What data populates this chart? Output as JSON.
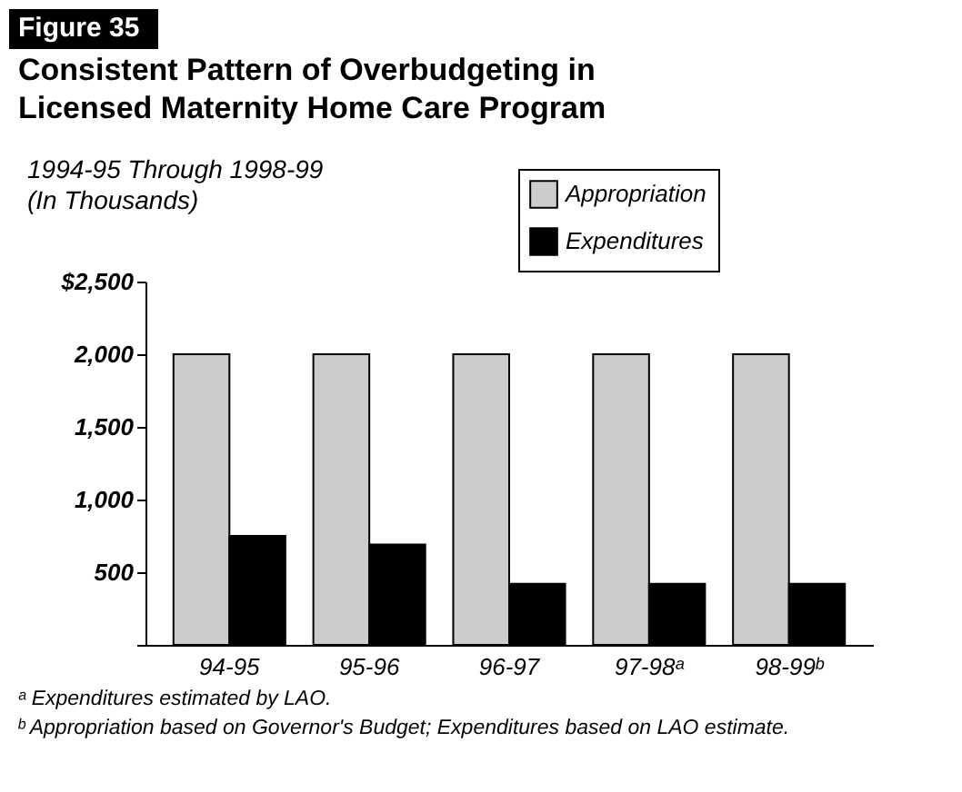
{
  "chart_data": {
    "type": "bar",
    "title": "Consistent Pattern of Overbudgeting in Licensed Maternity Home Care Program",
    "subtitle": "1994-95 Through 1998-99 (In Thousands)",
    "categories": [
      "94-95",
      "95-96",
      "96-97",
      "97-98ᵃ",
      "98-99ᵇ"
    ],
    "series": [
      {
        "name": "Appropriation",
        "color": "#cccccc",
        "values": [
          2000,
          2000,
          2000,
          2000,
          2000
        ]
      },
      {
        "name": "Expenditures",
        "color": "#000000",
        "values": [
          750,
          690,
          420,
          420,
          420
        ]
      }
    ],
    "ylim": [
      0,
      2500
    ],
    "yticks": [
      {
        "value": 0,
        "label": null
      },
      {
        "value": 500,
        "label": "500"
      },
      {
        "value": 1000,
        "label": "1,000"
      },
      {
        "value": 1500,
        "label": "1,500"
      },
      {
        "value": 2000,
        "label": "2,000"
      },
      {
        "value": 2500,
        "label": "$2,500"
      }
    ],
    "grid": false,
    "legend": "top right",
    "annotations": [
      "Figure 35",
      "ᵃ Expenditures estimated by LAO.",
      "ᵇ Appropriation based on Governor's Budget; Expenditures based on LAO estimate."
    ]
  }
}
